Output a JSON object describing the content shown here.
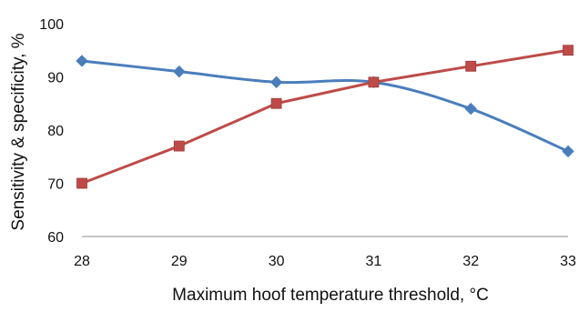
{
  "chart_data": {
    "type": "line",
    "title": "",
    "xlabel": "Maximum hoof temperature threshold, °C",
    "ylabel": "Sensitivity & specificity, %",
    "x": [
      28,
      29,
      30,
      31,
      32,
      33
    ],
    "x_tick_labels": [
      "28",
      "29",
      "30",
      "31",
      "32",
      "33"
    ],
    "y_ticks": [
      60,
      70,
      80,
      90,
      100
    ],
    "y_tick_labels": [
      "60",
      "70",
      "80",
      "90",
      "100"
    ],
    "xlim": [
      28,
      33
    ],
    "ylim": [
      60,
      100
    ],
    "grid": false,
    "legend": "none",
    "series": [
      {
        "color": "#4a7ebb",
        "marker": "diamond",
        "smooth": true,
        "values": [
          93,
          91,
          89,
          89,
          84,
          76
        ]
      },
      {
        "color": "#be4b48",
        "marker": "square",
        "smooth": false,
        "values": [
          70,
          77,
          85,
          89,
          92,
          95
        ]
      }
    ]
  }
}
